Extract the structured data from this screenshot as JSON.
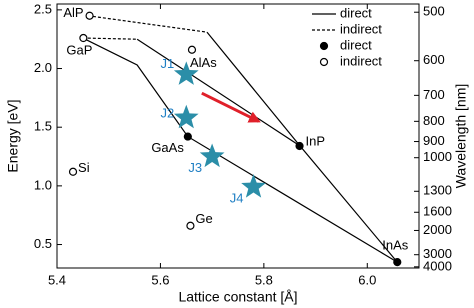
{
  "chart_data": {
    "type": "scatter",
    "xlabel": "Lattice constant [Å]",
    "ylabel": "Energy [eV]",
    "y2label": "Wavelength [nm]",
    "xlim": [
      5.4,
      6.1
    ],
    "ylim": [
      0.3,
      2.55
    ],
    "xticks": [
      5.4,
      5.6,
      5.8,
      {
        "value": 6.0,
        "label": "6.0"
      }
    ],
    "yticks": [
      0.5,
      {
        "value": 1.0,
        "label": "1.0"
      },
      1.5,
      {
        "value": 2.0,
        "label": "2.0"
      },
      2.5
    ],
    "y2scale": "reciprocal",
    "y2factor": 1240,
    "y2ticks": [
      500,
      600,
      700,
      800,
      900,
      1000,
      1300,
      1600,
      2000,
      3000,
      4000
    ],
    "lines": [
      {
        "name": "direct",
        "style": "solid",
        "color": "#000000",
        "x": [
          5.555,
          5.87,
          6.058,
          null,
          5.45,
          5.555,
          5.653,
          6.058,
          null,
          5.69,
          5.87
        ],
        "values": [
          2.25,
          1.34,
          0.35,
          null,
          2.26,
          2.03,
          1.42,
          0.35,
          null,
          2.31,
          1.34
        ]
      },
      {
        "name": "indirect",
        "style": "dashed",
        "color": "#000000",
        "x": [
          5.46,
          5.69,
          null,
          5.45,
          5.555
        ],
        "values": [
          2.45,
          2.31,
          null,
          2.26,
          2.25
        ]
      }
    ],
    "series": [
      {
        "name": "direct",
        "marker": "filled",
        "color": "#000000",
        "labels": [
          "GaAs",
          "InP",
          "InAs"
        ],
        "x": [
          5.653,
          5.869,
          6.058
        ],
        "values": [
          1.42,
          1.34,
          0.35
        ]
      },
      {
        "name": "indirect",
        "marker": "open",
        "color": "#000000",
        "labels": [
          "AlP",
          "GaP",
          "AlAs",
          "Si",
          "Ge"
        ],
        "x": [
          5.463,
          5.451,
          5.661,
          5.431,
          5.658
        ],
        "values": [
          2.45,
          2.26,
          2.16,
          1.12,
          0.66
        ]
      }
    ],
    "stars": {
      "color": "#2b8ea8",
      "label_color": "#1f7fc4",
      "labels": [
        "J1",
        "J2",
        "J3",
        "J4"
      ],
      "x": [
        5.65,
        5.65,
        5.7,
        5.78
      ],
      "values": [
        1.95,
        1.58,
        1.25,
        0.99
      ]
    },
    "arrow": {
      "color": "#e0202a",
      "x": [
        5.68,
        5.79
      ],
      "values": [
        1.79,
        1.55
      ]
    }
  }
}
